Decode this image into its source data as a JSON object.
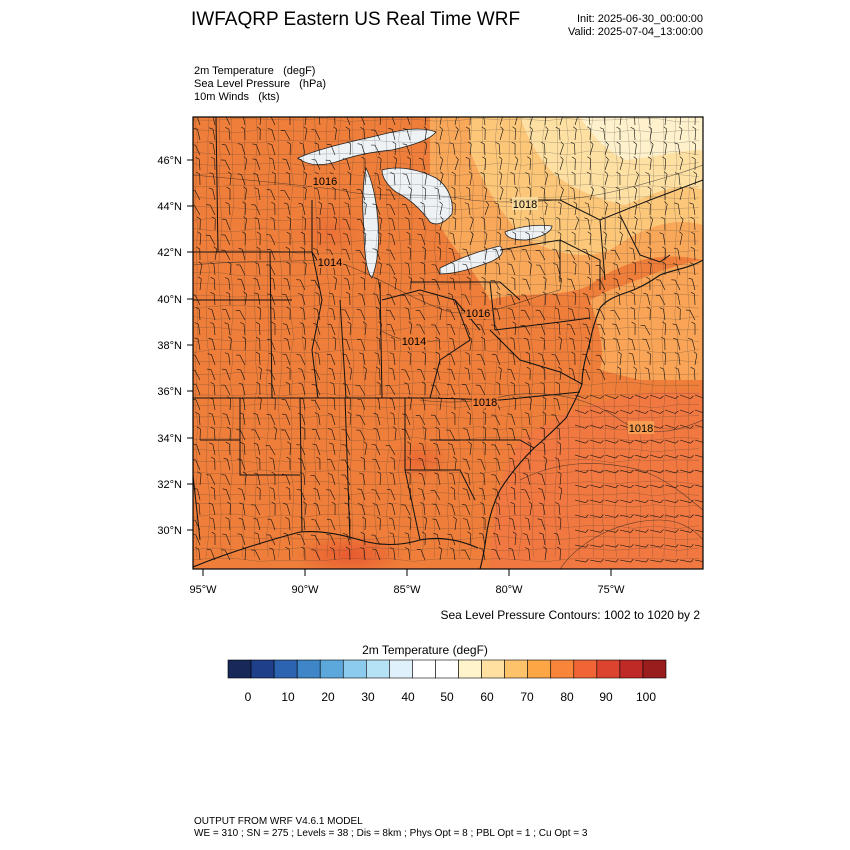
{
  "header": {
    "title": "IWFAQRP Eastern US Real Time WRF",
    "init": "Init: 2025-06-30_00:00:00",
    "valid": "Valid: 2025-07-04_13:00:00"
  },
  "fields": [
    {
      "name": "2m Temperature",
      "unit": "(degF)"
    },
    {
      "name": "Sea Level Pressure",
      "unit": "(hPa)"
    },
    {
      "name": "10m Winds",
      "unit": "(kts)"
    }
  ],
  "map": {
    "lat_labels": [
      "46°N",
      "44°N",
      "42°N",
      "40°N",
      "38°N",
      "36°N",
      "34°N",
      "32°N",
      "30°N"
    ],
    "lon_labels": [
      "95°W",
      "90°W",
      "85°W",
      "80°W",
      "75°W"
    ],
    "pressure_labels": [
      "1016",
      "1018",
      "1014",
      "1016",
      "1014",
      "1018",
      "1018"
    ],
    "contour_note": "Sea Level Pressure Contours: 1002 to 1020 by 2",
    "background_color": "#ee7e3a",
    "water_color": "#eef2f5"
  },
  "colorbar": {
    "title": "2m Temperature  (degF)",
    "tick_labels": [
      "0",
      "10",
      "20",
      "30",
      "40",
      "50",
      "60",
      "70",
      "80",
      "90",
      "100"
    ],
    "colors": [
      "#172859",
      "#203f8a",
      "#2d64b1",
      "#3f86c8",
      "#5ca8dd",
      "#8ccbed",
      "#b6e2f6",
      "#dff2fb",
      "#ffffff",
      "#ffffff",
      "#fff4cc",
      "#ffe0a0",
      "#fec36a",
      "#fca646",
      "#f9853a",
      "#f06436",
      "#dc4430",
      "#bf2a27",
      "#9a1d1d"
    ]
  },
  "footer": {
    "line1": "OUTPUT FROM WRF V4.6.1 MODEL",
    "line2": "WE = 310 ; SN = 275 ; Levels = 38 ; Dis = 8km ; Phys Opt = 8 ; PBL Opt = 1 ; Cu Opt = 3"
  }
}
